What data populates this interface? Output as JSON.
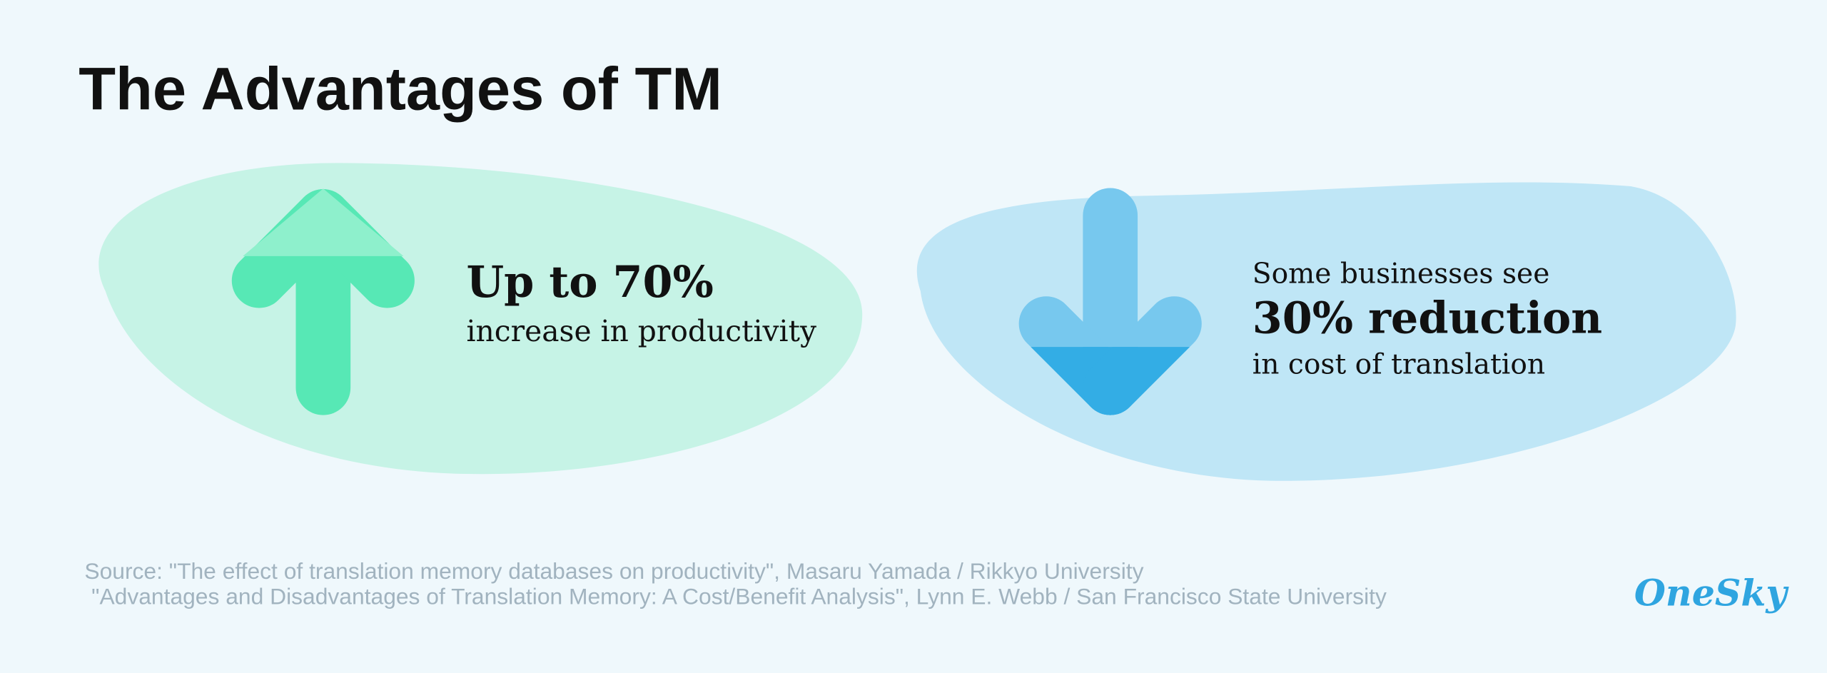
{
  "title": "The Advantages of TM",
  "cards": [
    {
      "headline": "Up to 70%",
      "text": "increase in productivity"
    },
    {
      "intro": "Some businesses see",
      "headline": "30% reduction",
      "text": "in cost of translation"
    }
  ],
  "sources": [
    "Source: \"The effect of translation memory databases on productivity\", Masaru Yamada / Rikkyo University",
    "\"Advantages and Disadvantages of Translation Memory: A Cost/Benefit Analysis\", Lynn E. Webb / San Francisco State University"
  ],
  "logo": "OneSky"
}
